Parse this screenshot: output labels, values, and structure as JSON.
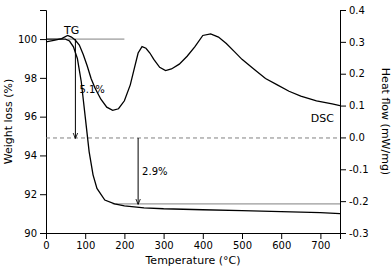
{
  "chart_data": {
    "type": "line",
    "xlabel": "Temperature (°C)",
    "ylabel": "Weight loss (%)",
    "y2label": "Heat flow (mW/mg)",
    "xlim": [
      0,
      750
    ],
    "xticks": [
      0,
      100,
      200,
      300,
      400,
      500,
      600,
      700
    ],
    "ylim": [
      90,
      101.5
    ],
    "yticks": [
      90,
      92,
      94,
      96,
      98,
      100
    ],
    "y2lim": [
      -0.3,
      0.4
    ],
    "y2ticks": [
      -0.3,
      -0.2,
      -0.1,
      {
        "value": 0.0,
        "label": "0.0"
      },
      0.1,
      0.2,
      0.3,
      0.4
    ],
    "grid": false,
    "series": [
      {
        "name": "TG",
        "axis": "y",
        "color": "black",
        "x": [
          0,
          30,
          50,
          60,
          70,
          80,
          90,
          95,
          100,
          110,
          120,
          130,
          150,
          175,
          200,
          250,
          300,
          400,
          500,
          600,
          700,
          750
        ],
        "values": [
          100.0,
          100.0,
          100.0,
          99.9,
          99.6,
          99.0,
          97.8,
          96.9,
          96.0,
          94.2,
          93.0,
          92.3,
          91.7,
          91.5,
          91.4,
          91.3,
          91.25,
          91.2,
          91.15,
          91.1,
          91.05,
          91.0
        ]
      },
      {
        "name": "DSC",
        "axis": "y2",
        "color": "black",
        "x": [
          0,
          20,
          40,
          55,
          65,
          75,
          85,
          95,
          105,
          115,
          125,
          140,
          155,
          170,
          185,
          200,
          215,
          225,
          235,
          245,
          255,
          265,
          275,
          290,
          305,
          320,
          340,
          360,
          380,
          400,
          420,
          440,
          460,
          480,
          500,
          530,
          560,
          590,
          620,
          650,
          690,
          730,
          750
        ],
        "values": [
          0.3,
          0.305,
          0.31,
          0.32,
          0.315,
          0.305,
          0.29,
          0.26,
          0.225,
          0.185,
          0.155,
          0.12,
          0.095,
          0.085,
          0.09,
          0.115,
          0.165,
          0.215,
          0.265,
          0.285,
          0.28,
          0.265,
          0.245,
          0.22,
          0.21,
          0.215,
          0.23,
          0.255,
          0.285,
          0.32,
          0.325,
          0.315,
          0.295,
          0.27,
          0.245,
          0.215,
          0.185,
          0.165,
          0.145,
          0.13,
          0.115,
          0.105,
          0.1
        ]
      }
    ],
    "reference_lines": [
      {
        "y": 94.9,
        "color": "gray",
        "line_style": "dashed"
      },
      {
        "y": 100.0,
        "x": [
          55,
          200
        ],
        "color": "gray",
        "line_style": "solid"
      },
      {
        "y": 91.5,
        "x": [
          170,
          750
        ],
        "color": "gray",
        "line_style": "solid"
      }
    ],
    "annotations": [
      {
        "text": "5.1%",
        "x": 75,
        "y": [
          100.0,
          94.9
        ]
      },
      {
        "text": "2.9%",
        "x": 235,
        "y": [
          94.9,
          91.5
        ]
      }
    ]
  }
}
